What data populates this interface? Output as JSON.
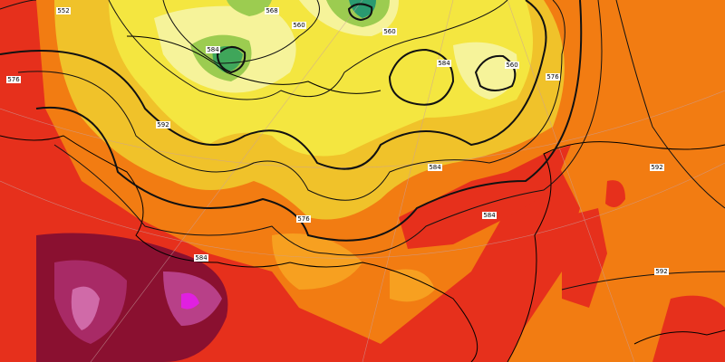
{
  "map": {
    "contour_labels": [
      "552",
      "568",
      "560",
      "560",
      "560",
      "576",
      "584",
      "584",
      "576",
      "584",
      "592",
      "592",
      "584",
      "584",
      "576",
      "592"
    ]
  }
}
